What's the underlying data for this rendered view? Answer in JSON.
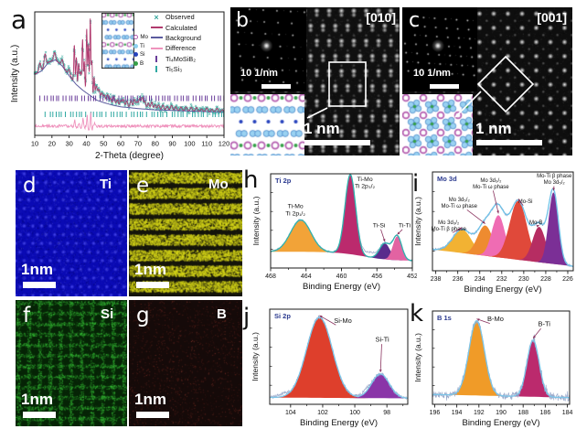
{
  "figure": {
    "background": "#ffffff"
  },
  "panels": {
    "a": {
      "letter": "a",
      "ylabel": "Intensity (a.u.)",
      "xlabel": "2-Theta (degree)",
      "legend": [
        {
          "label": "Observed",
          "marker": "x",
          "color": "#3aa79e"
        },
        {
          "label": "Calculated",
          "marker": "line",
          "color": "#b03a6e"
        },
        {
          "label": "Background",
          "marker": "line",
          "color": "#5b5b9e"
        },
        {
          "label": "Difference",
          "marker": "line",
          "color": "#ef93bd"
        },
        {
          "label": "Ti₄MoSiB₂",
          "marker": "tick",
          "color": "#6a3d9a"
        },
        {
          "label": "Ti₅Si₃",
          "marker": "tick",
          "color": "#2fa8a2"
        }
      ],
      "atom_legend": [
        {
          "label": "Mo",
          "color": "#b55fb0",
          "ring": true
        },
        {
          "label": "Ti",
          "color": "#8ed0ef",
          "ring": false
        },
        {
          "label": "Si",
          "color": "#2743bd",
          "ring": false
        },
        {
          "label": "B",
          "color": "#36a048",
          "ring": false
        }
      ]
    },
    "b": {
      "letter": "b",
      "zone_axis": "[010]",
      "fft_scale_label": "10 1/nm",
      "scale_label": "1 nm"
    },
    "c": {
      "letter": "c",
      "zone_axis": "[001]",
      "fft_scale_label": "10 1/nm",
      "scale_label": "1 nm"
    },
    "d": {
      "letter": "d",
      "element": "Ti",
      "scale_label": "1nm"
    },
    "e": {
      "letter": "e",
      "element": "Mo",
      "scale_label": "1nm"
    },
    "f": {
      "letter": "f",
      "element": "Si",
      "scale_label": "1nm"
    },
    "g": {
      "letter": "g",
      "element": "B",
      "scale_label": "1nm"
    },
    "h": {
      "letter": "h"
    },
    "i": {
      "letter": "i"
    },
    "j": {
      "letter": "j"
    },
    "k": {
      "letter": "k"
    }
  },
  "chart_data": [
    {
      "id": "xrd",
      "panel": "a",
      "type": "line",
      "title": "",
      "xlabel": "2-Theta (degree)",
      "ylabel": "Intensity (a.u.)",
      "xlim": [
        10,
        120
      ],
      "xticks": [
        10,
        20,
        30,
        40,
        50,
        60,
        70,
        80,
        90,
        100,
        110,
        120
      ],
      "series": [
        "Observed",
        "Calculated",
        "Background",
        "Difference"
      ],
      "colors": {
        "observed": "#3aa79e",
        "calculated": "#b03a6e",
        "background": "#5b5b9e",
        "difference": "#ef93bd",
        "ticks1": "#6a3d9a",
        "ticks2": "#2fa8a2"
      },
      "background_profile": [
        [
          10,
          0.5
        ],
        [
          14,
          0.53
        ],
        [
          18,
          0.6
        ],
        [
          22,
          0.62
        ],
        [
          26,
          0.57
        ],
        [
          30,
          0.49
        ],
        [
          34,
          0.42
        ],
        [
          38,
          0.37
        ],
        [
          42,
          0.33
        ],
        [
          46,
          0.29
        ],
        [
          50,
          0.27
        ],
        [
          55,
          0.25
        ],
        [
          60,
          0.235
        ],
        [
          70,
          0.22
        ],
        [
          80,
          0.21
        ],
        [
          90,
          0.205
        ],
        [
          100,
          0.2
        ],
        [
          110,
          0.195
        ],
        [
          120,
          0.19
        ]
      ],
      "peaks": [
        [
          13,
          0.07
        ],
        [
          16,
          0.1
        ],
        [
          21.5,
          0.06
        ],
        [
          26,
          0.05
        ],
        [
          30,
          0.05
        ],
        [
          33,
          0.3
        ],
        [
          34.2,
          0.22
        ],
        [
          35.5,
          0.17
        ],
        [
          36.6,
          0.13
        ],
        [
          37.8,
          0.4
        ],
        [
          38.8,
          0.24
        ],
        [
          40.2,
          0.52
        ],
        [
          41.2,
          0.4
        ],
        [
          42.3,
          0.62
        ],
        [
          43.2,
          0.28
        ],
        [
          44.5,
          0.16
        ],
        [
          45.8,
          0.11
        ],
        [
          47.3,
          0.09
        ],
        [
          49,
          0.07
        ],
        [
          50.5,
          0.06
        ],
        [
          52.3,
          0.07
        ],
        [
          54,
          0.05
        ],
        [
          56,
          0.07
        ],
        [
          58,
          0.05
        ],
        [
          60,
          0.05
        ],
        [
          61.5,
          0.06
        ],
        [
          63.5,
          0.05
        ],
        [
          66,
          0.06
        ],
        [
          68,
          0.07
        ],
        [
          69.5,
          0.05
        ],
        [
          71,
          0.08
        ],
        [
          72.5,
          0.09
        ],
        [
          74,
          0.06
        ],
        [
          76,
          0.05
        ],
        [
          78,
          0.06
        ],
        [
          80,
          0.04
        ],
        [
          82,
          0.04
        ],
        [
          84.5,
          0.04
        ],
        [
          87,
          0.03
        ],
        [
          89.5,
          0.04
        ],
        [
          92,
          0.03
        ],
        [
          95,
          0.03
        ],
        [
          98,
          0.03
        ],
        [
          101,
          0.03
        ],
        [
          104,
          0.03
        ],
        [
          107,
          0.02
        ],
        [
          110,
          0.03
        ],
        [
          113,
          0.02
        ],
        [
          116,
          0.03
        ],
        [
          119,
          0.02
        ]
      ],
      "bragg_rows": [
        {
          "phase": "Ti₄MoSiB₂",
          "color": "#6a3d9a",
          "range": [
            13,
            120
          ],
          "pattern": [
            2.7,
            1.6,
            2.2,
            1.3,
            1.9,
            1.1
          ]
        },
        {
          "phase": "Ti₅Si₃",
          "color": "#2fa8a2",
          "range": [
            16,
            120
          ],
          "pattern": [
            3.1,
            1.4,
            2.0,
            1.7,
            1.2,
            2.4
          ]
        }
      ]
    },
    {
      "id": "ti2p",
      "panel": "h",
      "type": "area",
      "title": "Ti 2p",
      "xlabel": "Binding Energy (eV)",
      "ylabel": "Intensity (a.u.)",
      "xlim": [
        468,
        452
      ],
      "xticks": [
        468,
        464,
        460,
        456,
        452
      ],
      "background": {
        "left": 0.17,
        "right": 0.055,
        "step_center": 457.5,
        "step_width": 1.5
      },
      "envelope_color": "#2fb3ae",
      "raw_color": "#96a5c8",
      "noise": 0.013,
      "seed": 21,
      "raw_extra": [
        {
          "c": 456.9,
          "s": 0.8,
          "h": 0.06
        }
      ],
      "peaks": [
        {
          "center": 464.6,
          "sigma": 1.15,
          "height": 0.4,
          "color": "#f2a338",
          "label": [
            "Ti-Mo",
            "Ti 2p₁/₂"
          ],
          "lx": 0.175,
          "ly": 0.3,
          "arrow": false
        },
        {
          "center": 459.0,
          "sigma": 0.6,
          "height": 1.0,
          "color": "#bb2a6d",
          "label": [
            "Ti-Mo",
            "Ti 2p₃/₂"
          ],
          "lx": 0.665,
          "ly": 0.01,
          "arrow": false
        },
        {
          "center": 455.1,
          "sigma": 0.6,
          "height": 0.2,
          "color": "#5a2c8c",
          "label": [
            "Ti-Si"
          ],
          "lx": 0.765,
          "ly": 0.5,
          "arrow": true
        },
        {
          "center": 453.7,
          "sigma": 0.5,
          "height": 0.3,
          "color": "#e263a2",
          "label": [
            "Ti-Ti"
          ],
          "lx": 0.945,
          "ly": 0.5,
          "arrow": true
        }
      ]
    },
    {
      "id": "mo3d",
      "panel": "i",
      "type": "area",
      "title": "Mo 3d",
      "xlabel": "Binding Energy (eV)",
      "ylabel": "Intensity (a.u.)",
      "xlim": [
        238.3,
        225.5
      ],
      "xticks": [
        238,
        236,
        234,
        232,
        230,
        228,
        226
      ],
      "background": {
        "left": 0.22,
        "right": 0.02
      },
      "envelope_color": "#6fc2e8",
      "raw_color": "#96a5c8",
      "noise": 0.016,
      "seed": 31,
      "peaks": [
        {
          "center": 235.6,
          "sigma": 0.85,
          "height": 0.28,
          "color": "#f2b233",
          "label": [
            "Mo 3d₃/₂",
            "Mo-Ti β phase"
          ],
          "lx": 0.115,
          "ly": 0.47,
          "arrow": true
        },
        {
          "center": 233.5,
          "sigma": 0.7,
          "height": 0.36,
          "color": "#ee8b30",
          "label": [
            "Mo 3d₅/₂",
            "Mo-Ti ω phase"
          ],
          "lx": 0.19,
          "ly": 0.24,
          "arrow": true
        },
        {
          "center": 232.3,
          "sigma": 0.6,
          "height": 0.5,
          "color": "#ef6cb3",
          "label": [
            "Mo 3d₃/₂",
            "Mo-Ti ω phase"
          ],
          "lx": 0.415,
          "ly": 0.045,
          "arrow": true
        },
        {
          "center": 230.5,
          "sigma": 0.78,
          "height": 0.7,
          "color": "#e0493a",
          "label": [
            "Mo-Si"
          ],
          "lx": 0.66,
          "ly": 0.26,
          "arrow": true
        },
        {
          "center": 228.6,
          "sigma": 0.6,
          "height": 0.42,
          "color": "#b62d62",
          "label": [
            "Mo-B"
          ],
          "lx": 0.735,
          "ly": 0.47,
          "arrow": true
        },
        {
          "center": 227.3,
          "sigma": 0.45,
          "height": 0.85,
          "color": "#7b2f96",
          "label": [
            "Mo-Ti β phase",
            "Mo 3d₅/₂"
          ],
          "lx": 0.865,
          "ly": 0.0,
          "arrow": true
        }
      ]
    },
    {
      "id": "si2p",
      "panel": "j",
      "type": "area",
      "title": "Si 2p",
      "xlabel": "Binding Energy (eV)",
      "ylabel": "Intensity (a.u.)",
      "xlim": [
        105.3,
        96.7
      ],
      "xticks": [
        104,
        102,
        100,
        98
      ],
      "background": {
        "left": 0.05,
        "right": 0.04
      },
      "envelope_color": "#7cc5e8",
      "raw_color": "#96a5c8",
      "noise": 0.022,
      "seed": 41,
      "raw_extra": [
        {
          "c": 104.5,
          "s": 0.3,
          "h": 0.04
        },
        {
          "c": 99.3,
          "s": 0.25,
          "h": 0.04
        }
      ],
      "peaks": [
        {
          "center": 102.2,
          "sigma": 0.8,
          "height": 1.0,
          "color": "#de3f2c",
          "label": [
            "Si-Mo"
          ],
          "lx": 0.53,
          "ly": 0.07,
          "arrow": true
        },
        {
          "center": 98.4,
          "sigma": 0.55,
          "height": 0.3,
          "color": "#8a35a8",
          "label": [
            "Si-Ti"
          ],
          "lx": 0.815,
          "ly": 0.27,
          "arrow": true
        }
      ]
    },
    {
      "id": "b1s",
      "panel": "k",
      "type": "area",
      "title": "B 1s",
      "xlabel": "Binding Energy (eV)",
      "ylabel": "Intensity (a.u.)",
      "xlim": [
        196.2,
        183.8
      ],
      "xticks": [
        196,
        194,
        192,
        190,
        188,
        186,
        184
      ],
      "background": {
        "left": 0.09,
        "right": 0.05
      },
      "envelope_color": "#7cc5e8",
      "raw_color": "#96a5c8",
      "noise": 0.045,
      "spike": 0.1,
      "seed": 51,
      "peaks": [
        {
          "center": 192.2,
          "sigma": 0.7,
          "height": 0.95,
          "color": "#f09b28",
          "label": [
            "B-Mo"
          ],
          "lx": 0.46,
          "ly": 0.035,
          "arrow": true
        },
        {
          "center": 187.1,
          "sigma": 0.55,
          "height": 0.72,
          "color": "#bb2a6d",
          "label": [
            "B-Ti"
          ],
          "lx": 0.815,
          "ly": 0.09,
          "arrow": true
        }
      ]
    }
  ]
}
